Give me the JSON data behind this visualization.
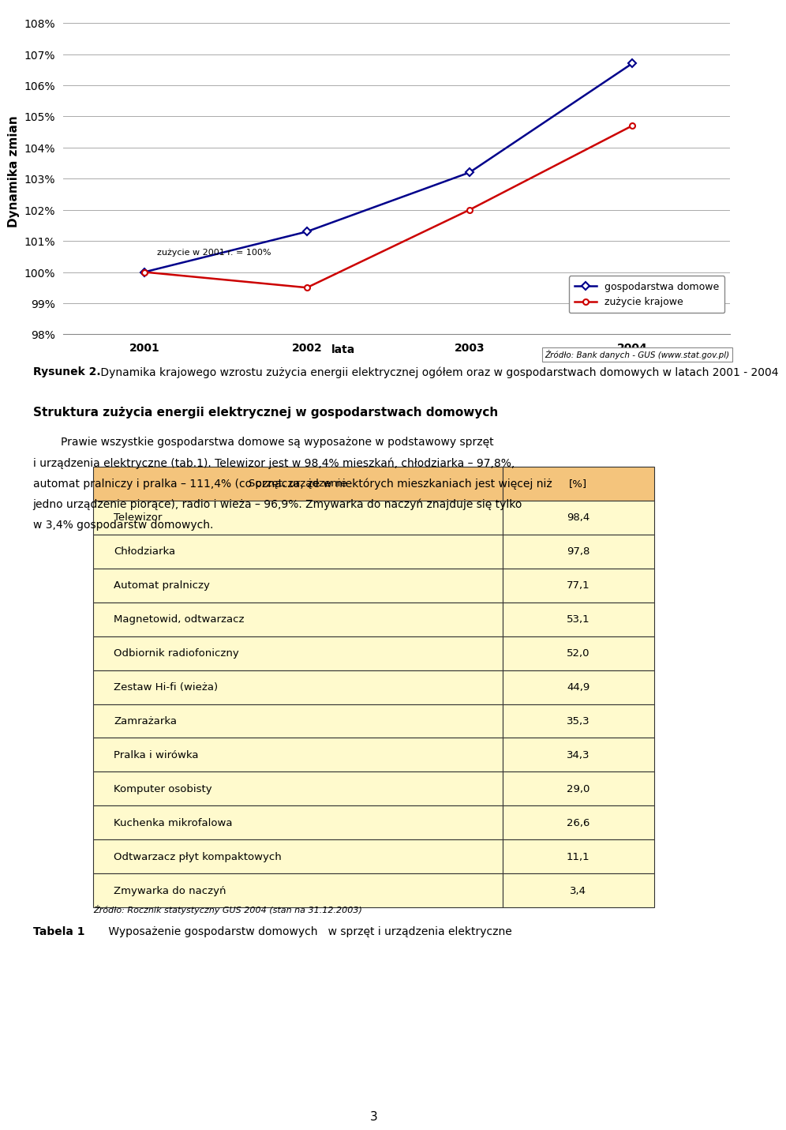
{
  "chart_title": "",
  "years": [
    2001,
    2002,
    2003,
    2004
  ],
  "gospodarstwa_domowe": [
    100.0,
    101.3,
    103.2,
    106.7
  ],
  "zuzycie_krajowe": [
    100.0,
    99.5,
    102.0,
    104.7
  ],
  "ylabel": "Dynamika zmian",
  "xlabel": "lata",
  "ylim_min": 98.0,
  "ylim_max": 108.5,
  "yticks": [
    98,
    99,
    100,
    101,
    102,
    103,
    104,
    105,
    106,
    107,
    108
  ],
  "legend_gospodarstwa": "gospodarstwa domowe",
  "legend_krajowe": "zużycie krajowe",
  "annotation": "zużycie w 2001 r. = 100%",
  "source_chart": "Źródło: Bank danych - GUS (www.stat.gov.pl)",
  "figure_caption_bold": "Rysunek 2.",
  "figure_caption_normal": " Dynamika krajowego wzrostu zużycia energii elektrycznej ogółem oraz w gospodarstwach domowych w latach 2001 - 2004",
  "section_title": "Struktura zużycia energii elektrycznej w gospodarstwach domowych",
  "paragraph_line1": "        Prawie wszystkie gospodarstwa domowe są wyposażone w podstawowy sprzęt",
  "paragraph_line2": "i urządzenia elektryczne (tab.1). Telewizor jest w 98,4% mieszkań, chłodziarka – 97,8%,",
  "paragraph_line3": "automat pralniczy i pralka – 111,4% (co oznacza, że w niektórych mieszkaniach jest więcej niż",
  "paragraph_line4": "jedno urządzenie piorące), radio i wieża – 96,9%. Zmywarka do naczyń znajduje się tylko",
  "paragraph_line5": "w 3,4% gospodarstw domowych.",
  "table_header": [
    "Sprzęt, urządzenie",
    "[%]"
  ],
  "table_rows": [
    [
      "Telewizor",
      "98,4"
    ],
    [
      "Chłodziarka",
      "97,8"
    ],
    [
      "Automat pralniczy",
      "77,1"
    ],
    [
      "Magnetowid, odtwarzacz",
      "53,1"
    ],
    [
      "Odbiornik radiofoniczny",
      "52,0"
    ],
    [
      "Zestaw Hi-fi (wieża)",
      "44,9"
    ],
    [
      "Zamrażarka",
      "35,3"
    ],
    [
      "Pralka i wirówka",
      "34,3"
    ],
    [
      "Komputer osobisty",
      "29,0"
    ],
    [
      "Kuchenka mikrofalowa",
      "26,6"
    ],
    [
      "Odtwarzacz płyt kompaktowych",
      "11,1"
    ],
    [
      "Zmywarka do naczyń",
      "3,4"
    ]
  ],
  "table_source": "Źródło: Rocznik statystyczny GUS 2004 (stan na 31.12.2003)",
  "table_caption_bold": "Tabela 1",
  "table_caption_normal": " Wyposażenie gospodarstw domowych   w sprzęt i urządzenia elektryczne",
  "page_number": "3",
  "color_gospodarstwa": "#00008B",
  "color_krajowe": "#CC0000",
  "color_table_header_bg": "#F4C47C",
  "color_table_row_bg": "#FFFACD",
  "color_table_border": "#333333",
  "bg_color": "#FFFFFF"
}
